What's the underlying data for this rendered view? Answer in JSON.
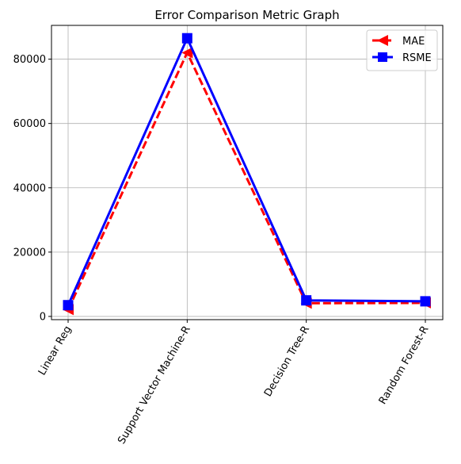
{
  "chart_data": {
    "type": "line",
    "title": "Error Comparison Metric Graph",
    "xlabel": "",
    "ylabel": "",
    "categories": [
      "Linear Reg",
      "Support Vector Machine-R",
      "Decision Tree-R",
      "Random Forest-R"
    ],
    "ylim": [
      -1000,
      90500
    ],
    "yticks": [
      0,
      20000,
      40000,
      60000,
      80000
    ],
    "grid": true,
    "legend_position": "top-right",
    "series": [
      {
        "name": "MAE",
        "values": [
          2100,
          82000,
          4100,
          4200
        ],
        "color": "#ff0000",
        "line_style": "dashed",
        "marker": "triangle-left"
      },
      {
        "name": "RSME",
        "values": [
          3500,
          86500,
          5000,
          4700
        ],
        "color": "#0000ff",
        "line_style": "solid",
        "marker": "square"
      }
    ]
  }
}
